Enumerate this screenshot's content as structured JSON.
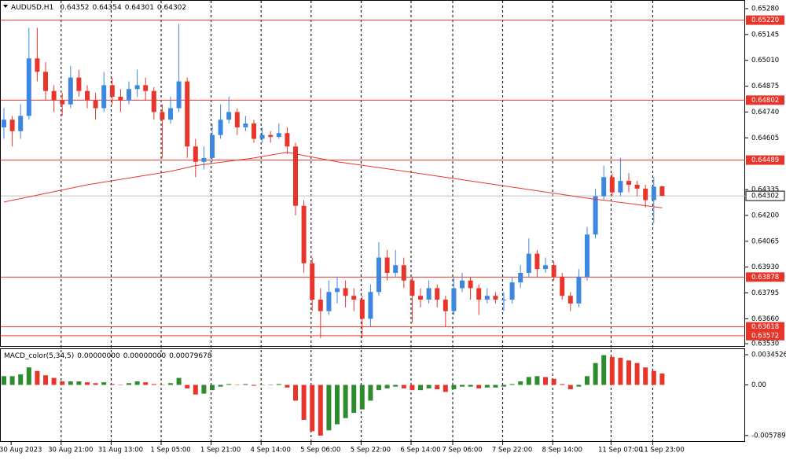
{
  "chart_data": [
    {
      "type": "candlestick",
      "title": "AUDUSD,H1",
      "categories": [
        null,
        null,
        "30 Aug 2023",
        null,
        null,
        null,
        null,
        null,
        "30 Aug 21:00",
        null,
        null,
        null,
        null,
        null,
        "31 Aug 13:00",
        null,
        null,
        null,
        null,
        null,
        "1 Sep 05:00",
        null,
        null,
        null,
        null,
        null,
        "1 Sep 21:00",
        null,
        null,
        null,
        null,
        null,
        "4 Sep 14:00",
        null,
        null,
        null,
        null,
        null,
        "5 Sep 06:00",
        null,
        null,
        null,
        null,
        null,
        "5 Sep 22:00",
        null,
        null,
        null,
        null,
        null,
        "6 Sep 14:00",
        null,
        null,
        null,
        null,
        "7 Sep 06:00",
        null,
        null,
        null,
        null,
        null,
        "7 Sep 22:00",
        null,
        null,
        null,
        null,
        null,
        "8 Sep 14:00",
        null,
        null,
        null,
        null,
        null,
        null,
        "11 Sep 07:00",
        null,
        null,
        null,
        null,
        "11 Sep 23:00"
      ],
      "candles": [
        [
          0.6466,
          0.6476,
          0.646,
          0.647
        ],
        [
          0.647,
          0.6472,
          0.6456,
          0.6464
        ],
        [
          0.6464,
          0.6478,
          0.646,
          0.6472
        ],
        [
          0.6472,
          0.6518,
          0.647,
          0.6502
        ],
        [
          0.6502,
          0.6518,
          0.649,
          0.6495
        ],
        [
          0.6495,
          0.65,
          0.648,
          0.6485
        ],
        [
          0.6485,
          0.6488,
          0.6474,
          0.648
        ],
        [
          0.648,
          0.6484,
          0.6472,
          0.6478
        ],
        [
          0.6478,
          0.6498,
          0.6476,
          0.6492
        ],
        [
          0.6492,
          0.6496,
          0.6482,
          0.6485
        ],
        [
          0.6485,
          0.6488,
          0.6476,
          0.648
        ],
        [
          0.648,
          0.6484,
          0.647,
          0.6476
        ],
        [
          0.6476,
          0.6495,
          0.6474,
          0.6488
        ],
        [
          0.6488,
          0.6492,
          0.6478,
          0.6482
        ],
        [
          0.6482,
          0.6486,
          0.6474,
          0.648
        ],
        [
          0.648,
          0.649,
          0.6478,
          0.6486
        ],
        [
          0.6486,
          0.6496,
          0.6482,
          0.6488
        ],
        [
          0.6488,
          0.6492,
          0.648,
          0.6485
        ],
        [
          0.6485,
          0.6487,
          0.647,
          0.6474
        ],
        [
          0.6474,
          0.6478,
          0.645,
          0.647
        ],
        [
          0.647,
          0.6482,
          0.6468,
          0.6476
        ],
        [
          0.6476,
          0.652,
          0.6474,
          0.649
        ],
        [
          0.649,
          0.6492,
          0.645,
          0.6456
        ],
        [
          0.6456,
          0.646,
          0.644,
          0.6448
        ],
        [
          0.6448,
          0.6456,
          0.6444,
          0.645
        ],
        [
          0.645,
          0.6468,
          0.6448,
          0.6462
        ],
        [
          0.6462,
          0.6478,
          0.646,
          0.647
        ],
        [
          0.647,
          0.6482,
          0.6468,
          0.6474
        ],
        [
          0.6474,
          0.6476,
          0.6462,
          0.6466
        ],
        [
          0.6466,
          0.6472,
          0.6464,
          0.6468
        ],
        [
          0.6468,
          0.647,
          0.6458,
          0.646
        ],
        [
          0.646,
          0.6466,
          0.6458,
          0.6462
        ],
        [
          0.6462,
          0.6464,
          0.6458,
          0.6461
        ],
        [
          0.6461,
          0.6468,
          0.646,
          0.6463
        ],
        [
          0.6463,
          0.6466,
          0.6452,
          0.6456
        ],
        [
          0.6456,
          0.6458,
          0.642,
          0.6425
        ],
        [
          0.6425,
          0.6428,
          0.639,
          0.6395
        ],
        [
          0.6395,
          0.6398,
          0.637,
          0.6376
        ],
        [
          0.6376,
          0.6382,
          0.6356,
          0.637
        ],
        [
          0.637,
          0.6386,
          0.6368,
          0.638
        ],
        [
          0.638,
          0.6388,
          0.6374,
          0.6382
        ],
        [
          0.6382,
          0.6386,
          0.6372,
          0.6378
        ],
        [
          0.6378,
          0.6382,
          0.637,
          0.6376
        ],
        [
          0.6376,
          0.6378,
          0.6356,
          0.6366
        ],
        [
          0.6366,
          0.6384,
          0.6362,
          0.638
        ],
        [
          0.638,
          0.6406,
          0.6378,
          0.6398
        ],
        [
          0.6398,
          0.6402,
          0.6386,
          0.639
        ],
        [
          0.639,
          0.6402,
          0.6388,
          0.6394
        ],
        [
          0.6394,
          0.6398,
          0.6382,
          0.6386
        ],
        [
          0.6386,
          0.6388,
          0.6364,
          0.6378
        ],
        [
          0.6378,
          0.6382,
          0.6372,
          0.6376
        ],
        [
          0.6376,
          0.6386,
          0.6374,
          0.6382
        ],
        [
          0.6382,
          0.6384,
          0.6372,
          0.6376
        ],
        [
          0.6376,
          0.6378,
          0.6362,
          0.637
        ],
        [
          0.637,
          0.6388,
          0.6368,
          0.6382
        ],
        [
          0.6382,
          0.639,
          0.638,
          0.6386
        ],
        [
          0.6386,
          0.6388,
          0.6376,
          0.6382
        ],
        [
          0.6382,
          0.6384,
          0.6368,
          0.6376
        ],
        [
          0.6376,
          0.6382,
          0.6374,
          0.6378
        ],
        [
          0.6378,
          0.638,
          0.6374,
          0.6376
        ],
        [
          0.6376,
          0.638,
          0.637,
          0.6376
        ],
        [
          0.6376,
          0.6388,
          0.6374,
          0.6385
        ],
        [
          0.6385,
          0.6394,
          0.6382,
          0.639
        ],
        [
          0.639,
          0.6408,
          0.6388,
          0.64
        ],
        [
          0.64,
          0.6402,
          0.6388,
          0.6392
        ],
        [
          0.6392,
          0.6398,
          0.639,
          0.6394
        ],
        [
          0.6394,
          0.6396,
          0.6386,
          0.6388
        ],
        [
          0.6388,
          0.639,
          0.6376,
          0.6378
        ],
        [
          0.6378,
          0.638,
          0.637,
          0.6374
        ],
        [
          0.6374,
          0.6392,
          0.6372,
          0.6388
        ],
        [
          0.6388,
          0.6414,
          0.6386,
          0.641
        ],
        [
          0.641,
          0.6434,
          0.6408,
          0.643
        ],
        [
          0.643,
          0.6446,
          0.6428,
          0.644
        ],
        [
          0.644,
          0.6442,
          0.643,
          0.6432
        ],
        [
          0.6432,
          0.645,
          0.643,
          0.6438
        ],
        [
          0.6438,
          0.6442,
          0.6432,
          0.6436
        ],
        [
          0.6436,
          0.6438,
          0.643,
          0.6434
        ],
        [
          0.6434,
          0.6436,
          0.6424,
          0.6428
        ],
        [
          0.6428,
          0.644,
          0.6416,
          0.6435
        ],
        [
          0.64352,
          0.64354,
          0.64301,
          0.64302
        ]
      ],
      "up_color": "#3d87e0",
      "down_color": "#e8352b",
      "ma": {
        "color": "#e8352b",
        "x": [
          0,
          10,
          20,
          23,
          30,
          34,
          40,
          45,
          56,
          70,
          79
        ],
        "values": [
          0.6427,
          0.6436,
          0.6443,
          0.6446,
          0.645,
          0.6453,
          0.6448,
          0.6445,
          0.6438,
          0.6429,
          0.6424
        ]
      },
      "levels": [
        {
          "value": 0.6522,
          "label": "0.65220"
        },
        {
          "value": 0.64802,
          "label": "0.64802"
        },
        {
          "value": 0.64489,
          "label": "0.64489"
        },
        {
          "value": 0.63878,
          "label": "0.63878"
        },
        {
          "value": 0.63618,
          "label": "0.63618"
        },
        {
          "value": 0.63572,
          "label": "0.63572"
        }
      ],
      "level_color": "#e8352b",
      "ylim": [
        0.63518,
        0.65321
      ],
      "yticks": [
        {
          "value": 0.6528,
          "label": "0.65280"
        },
        0.65145,
        {
          "value": 0.6501,
          "label": "0.65010"
        },
        0.64875,
        {
          "value": 0.6474,
          "label": "0.64740"
        },
        0.64605,
        0.64335,
        {
          "value": 0.642,
          "label": "0.64200"
        },
        0.64065,
        {
          "value": 0.6393,
          "label": "0.63930"
        },
        0.63795,
        {
          "value": 0.6366,
          "label": "0.63660"
        },
        {
          "value": 0.6353,
          "label": "0.63530"
        }
      ]
    },
    {
      "type": "histogram-indicator",
      "title": "MACD_color(5,34,5)",
      "readout": [
        {
          "value": 0,
          "label": "0.00000000"
        },
        {
          "value": 0,
          "label": "0.00000000"
        },
        0.00079678
      ],
      "values": [
        0.001,
        0.001,
        0.0012,
        0.002,
        0.0016,
        0.0011,
        0.0008,
        0.0004,
        0.0004,
        0.0004,
        0.0003,
        0.0002,
        0.0003,
        0.0001,
        0,
        0.0002,
        0.0004,
        0.0003,
        0.0001,
        0,
        0.0002,
        0.0008,
        -0.0004,
        -0.0011,
        -0.001,
        -0.0006,
        -0.0002,
        0.0001,
        0,
        0.0001,
        -0.0001,
        0,
        0,
        0.0001,
        -0.0003,
        -0.0018,
        -0.004,
        -0.0053,
        -0.0058,
        -0.0052,
        -0.0045,
        -0.0038,
        -0.0032,
        -0.0028,
        -0.0018,
        -0.0006,
        -0.0004,
        -0.0002,
        -0.0004,
        -0.0006,
        -0.0006,
        -0.0004,
        -0.0005,
        -0.0008,
        -0.0005,
        -0.0002,
        -0.0002,
        -0.0004,
        -0.0003,
        -0.0003,
        -0.0002,
        0.0001,
        0.0004,
        0.0009,
        0.001,
        0.0009,
        0.0007,
        0.0001,
        -0.0005,
        -0.0002,
        0.001,
        0.0025,
        0.0034,
        0.0032,
        0.0031,
        0.0028,
        0.0025,
        0.002,
        0.0016,
        0.0013
      ],
      "up_color": "#2e8b2e",
      "down_color": "#e8352b",
      "ylim": [
        -0.00643,
        0.00409
      ],
      "yticks": [
        0.0034526,
        {
          "value": 0,
          "label": "0.00"
        },
        {
          "value": -0.005789,
          "label": "-0.0057890"
        }
      ]
    }
  ]
}
